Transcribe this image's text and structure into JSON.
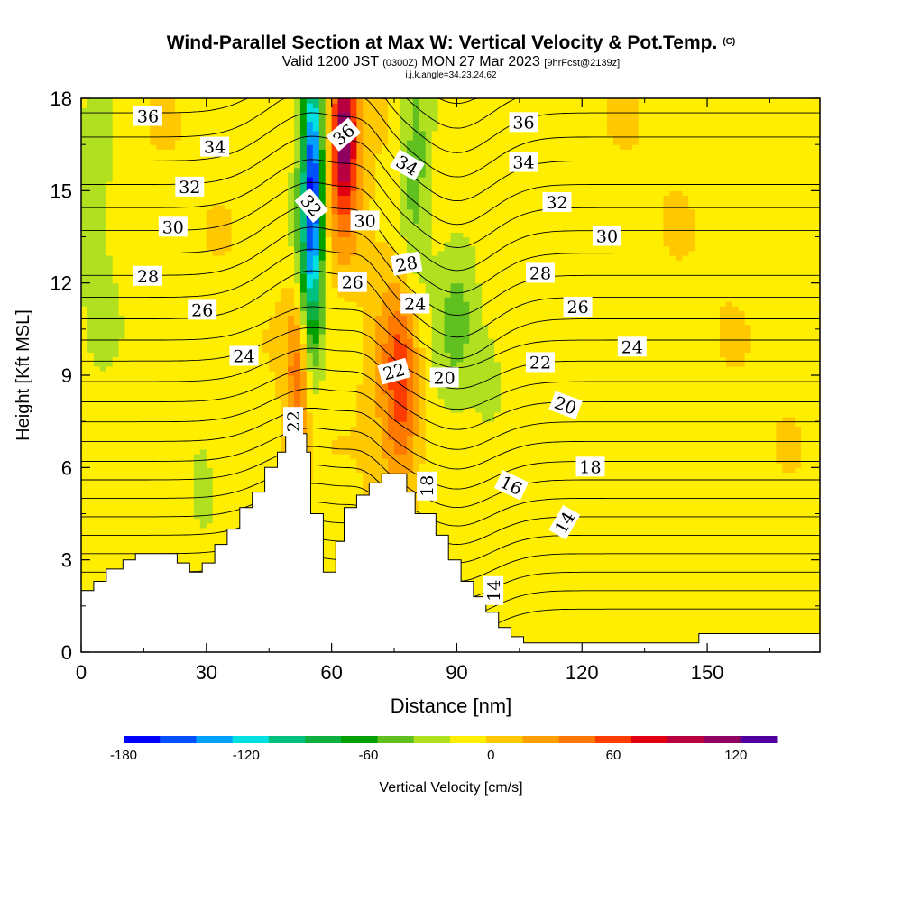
{
  "header": {
    "title": "Wind-Parallel Section at Max W: Vertical Velocity & Pot.Temp.",
    "copyright": "(C)",
    "valid_prefix": "Valid 1200 JST",
    "valid_utc": "(0300Z)",
    "valid_date": "MON 27 Mar 2023",
    "forecast": "[9hrFcst@2139z]",
    "indices": "i,j,k,angle=34,23,24,62"
  },
  "chart_data": {
    "type": "heatmap",
    "title": "Wind-Parallel Section at Max W: Vertical Velocity & Pot.Temp.",
    "xlabel": "Distance [nm]",
    "ylabel": "Height [Kft MSL]",
    "xlim": [
      0,
      177
    ],
    "ylim": [
      0,
      18
    ],
    "x_ticks": [
      "0",
      "30",
      "60",
      "90",
      "120",
      "150"
    ],
    "y_ticks": [
      "0",
      "3",
      "6",
      "9",
      "12",
      "15",
      "18"
    ],
    "colorbar": {
      "label": "Vertical Velocity [cm/s]",
      "ticks": [
        "-180",
        "-120",
        "-60",
        "0",
        "60",
        "120"
      ],
      "range": [
        -180,
        140
      ],
      "step": 20,
      "colors": [
        "#0000ff",
        "#0050ff",
        "#00a0ff",
        "#00e0e0",
        "#00c080",
        "#10b040",
        "#00a000",
        "#60c020",
        "#b0e020",
        "#ffee00",
        "#ffc800",
        "#ffa000",
        "#ff7800",
        "#ff3c00",
        "#e00010",
        "#b80040",
        "#900060",
        "#5000a0"
      ]
    },
    "terrain": [
      [
        0,
        2
      ],
      [
        3,
        2
      ],
      [
        3,
        2.3
      ],
      [
        6,
        2.3
      ],
      [
        6,
        2.7
      ],
      [
        10,
        2.7
      ],
      [
        10,
        3
      ],
      [
        13,
        3
      ],
      [
        13,
        3.2
      ],
      [
        23,
        3.2
      ],
      [
        23,
        2.9
      ],
      [
        26,
        2.9
      ],
      [
        26,
        2.6
      ],
      [
        29,
        2.6
      ],
      [
        29,
        2.9
      ],
      [
        32,
        2.9
      ],
      [
        32,
        3.5
      ],
      [
        35,
        3.5
      ],
      [
        35,
        4
      ],
      [
        38,
        4
      ],
      [
        38,
        4.7
      ],
      [
        41,
        4.7
      ],
      [
        41,
        5.2
      ],
      [
        44,
        5.2
      ],
      [
        44,
        6
      ],
      [
        47,
        6
      ],
      [
        47,
        6.5
      ],
      [
        49,
        6.5
      ],
      [
        49,
        7.1
      ],
      [
        54,
        7.1
      ],
      [
        54,
        6.5
      ],
      [
        55,
        6.5
      ],
      [
        55,
        4.5
      ],
      [
        58,
        4.5
      ],
      [
        58,
        2.6
      ],
      [
        61,
        2.6
      ],
      [
        61,
        3.6
      ],
      [
        63,
        3.6
      ],
      [
        63,
        4.7
      ],
      [
        66,
        4.7
      ],
      [
        66,
        5.1
      ],
      [
        69,
        5.1
      ],
      [
        69,
        5.5
      ],
      [
        72,
        5.5
      ],
      [
        72,
        5.8
      ],
      [
        78,
        5.8
      ],
      [
        78,
        5.2
      ],
      [
        80,
        5.2
      ],
      [
        80,
        4.5
      ],
      [
        85,
        4.5
      ],
      [
        85,
        3.8
      ],
      [
        88,
        3.8
      ],
      [
        88,
        3
      ],
      [
        91,
        3
      ],
      [
        91,
        2.3
      ],
      [
        94,
        2.3
      ],
      [
        94,
        1.8
      ],
      [
        97,
        1.8
      ],
      [
        97,
        1.3
      ],
      [
        100,
        1.3
      ],
      [
        100,
        0.8
      ],
      [
        103,
        0.8
      ],
      [
        103,
        0.5
      ],
      [
        106,
        0.5
      ],
      [
        106,
        0.3
      ],
      [
        148,
        0.3
      ],
      [
        148,
        0.6
      ],
      [
        177,
        0.6
      ]
    ],
    "w_features": [
      {
        "x": 55.5,
        "z": 15.5,
        "sx": 1.6,
        "sz": 3.2,
        "w": -140
      },
      {
        "x": 54.5,
        "z": 13,
        "sx": 2.2,
        "sz": 3,
        "w": -60
      },
      {
        "x": 63,
        "z": 17,
        "sx": 2.0,
        "sz": 1.4,
        "w": 120
      },
      {
        "x": 63,
        "z": 15,
        "sx": 3.0,
        "sz": 2.2,
        "w": 55
      },
      {
        "x": 80,
        "z": 16,
        "sx": 2.8,
        "sz": 3.5,
        "w": -45
      },
      {
        "x": 90,
        "z": 11,
        "sx": 4.0,
        "sz": 2.4,
        "w": -40
      },
      {
        "x": 98,
        "z": 9,
        "sx": 2.5,
        "sz": 1.2,
        "w": -25
      },
      {
        "x": 52,
        "z": 9,
        "sx": 2.2,
        "sz": 2.0,
        "w": 65
      },
      {
        "x": 77,
        "z": 8.5,
        "sx": 3.0,
        "sz": 2.2,
        "w": 70
      },
      {
        "x": 73,
        "z": 9,
        "sx": 4.5,
        "sz": 3.0,
        "w": 30
      },
      {
        "x": 29,
        "z": 5.5,
        "sx": 1.5,
        "sz": 0.8,
        "w": -25
      },
      {
        "x": 4,
        "z": 16,
        "sx": 3.5,
        "sz": 5,
        "w": -18
      },
      {
        "x": 115,
        "z": 3,
        "sx": 2.5,
        "sz": 2,
        "w": -8
      },
      {
        "x": 132,
        "z": 3,
        "sx": 5,
        "sz": 2,
        "w": -4
      }
    ],
    "theta_levels": [
      14,
      16,
      18,
      20,
      22,
      24,
      26,
      28,
      30,
      32,
      34,
      36
    ],
    "theta_labels": [
      {
        "text": "36",
        "x": 16,
        "z": 17.4,
        "angle": 0
      },
      {
        "text": "34",
        "x": 32,
        "z": 16.4,
        "angle": 0
      },
      {
        "text": "32",
        "x": 26,
        "z": 15.1,
        "angle": 0
      },
      {
        "text": "30",
        "x": 22,
        "z": 13.8,
        "angle": 0
      },
      {
        "text": "28",
        "x": 16,
        "z": 12.2,
        "angle": 0
      },
      {
        "text": "26",
        "x": 29,
        "z": 11.1,
        "angle": 0
      },
      {
        "text": "24",
        "x": 39,
        "z": 9.6,
        "angle": 0
      },
      {
        "text": "22",
        "x": 51,
        "z": 7.5,
        "angle": -90
      },
      {
        "text": "36",
        "x": 63,
        "z": 16.8,
        "angle": -40
      },
      {
        "text": "32",
        "x": 55,
        "z": 14.5,
        "angle": 50
      },
      {
        "text": "30",
        "x": 68,
        "z": 14.0,
        "angle": 0
      },
      {
        "text": "26",
        "x": 65,
        "z": 12.0,
        "angle": 0
      },
      {
        "text": "34",
        "x": 78,
        "z": 15.8,
        "angle": 30
      },
      {
        "text": "28",
        "x": 78,
        "z": 12.6,
        "angle": -10
      },
      {
        "text": "24",
        "x": 80,
        "z": 11.3,
        "angle": 0
      },
      {
        "text": "22",
        "x": 75,
        "z": 9.1,
        "angle": -15
      },
      {
        "text": "20",
        "x": 87,
        "z": 8.9,
        "angle": 0
      },
      {
        "text": "18",
        "x": 83,
        "z": 5.4,
        "angle": -90
      },
      {
        "text": "36",
        "x": 106,
        "z": 17.2,
        "angle": 0
      },
      {
        "text": "34",
        "x": 106,
        "z": 15.9,
        "angle": 0
      },
      {
        "text": "32",
        "x": 114,
        "z": 14.6,
        "angle": 0
      },
      {
        "text": "30",
        "x": 126,
        "z": 13.5,
        "angle": 0
      },
      {
        "text": "28",
        "x": 110,
        "z": 12.3,
        "angle": 0
      },
      {
        "text": "26",
        "x": 119,
        "z": 11.2,
        "angle": 0
      },
      {
        "text": "24",
        "x": 132,
        "z": 9.9,
        "angle": 0
      },
      {
        "text": "22",
        "x": 110,
        "z": 9.4,
        "angle": 0
      },
      {
        "text": "20",
        "x": 116,
        "z": 8.0,
        "angle": 20
      },
      {
        "text": "18",
        "x": 122,
        "z": 6.0,
        "angle": 0
      },
      {
        "text": "16",
        "x": 103,
        "z": 5.4,
        "angle": 25
      },
      {
        "text": "14",
        "x": 116,
        "z": 4.2,
        "angle": -60
      },
      {
        "text": "14",
        "x": 99,
        "z": 2.0,
        "angle": -90
      }
    ]
  }
}
